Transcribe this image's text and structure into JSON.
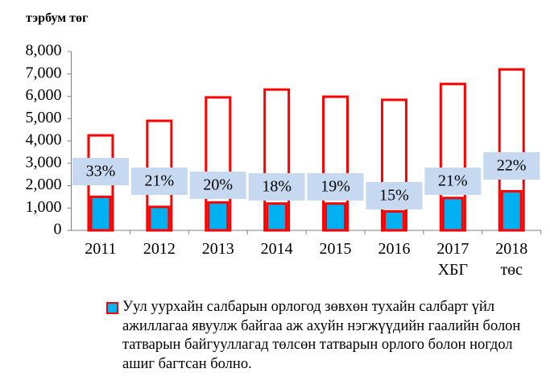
{
  "chart_data": {
    "type": "bar",
    "title": "тэрбум төг",
    "categories": [
      "2011",
      "2012",
      "2013",
      "2014",
      "2015",
      "2016",
      "2017\nХБГ",
      "2018\nтөс"
    ],
    "series": [
      {
        "color": "#ff0000",
        "values": [
          4250,
          4900,
          5950,
          6300,
          5980,
          5840,
          6550,
          7200
        ]
      },
      {
        "name": "Уул уурхайн салбарын орлогод зөвхөн тухайн салбарт үйл ажиллагаа явуулж байгаа аж ахуйн нэгжүүдийн гаалийн болон татварын байгууллагад төлсөн татварын орлого болон ногдол ашиг багтсан болно.",
        "color": "#00b0f0",
        "values": [
          1500,
          1050,
          1250,
          1200,
          1200,
          850,
          1450,
          1750
        ]
      }
    ],
    "percentages": {
      "values": [
        33,
        21,
        20,
        18,
        19,
        15,
        21,
        22
      ],
      "value_labels": [
        "33%",
        "21%",
        "20%",
        "18%",
        "19%",
        "15%",
        "21%",
        "22%"
      ]
    },
    "ylim": [
      0,
      8000
    ],
    "yticks": [
      0,
      {
        "value": 1000,
        "label": "1,000"
      },
      {
        "value": 2000,
        "label": "2,000"
      },
      {
        "value": 3000,
        "label": "3,000"
      },
      {
        "value": 4000,
        "label": "4,000"
      },
      {
        "value": 5000,
        "label": "5,000"
      },
      {
        "value": 6000,
        "label": "6,000"
      },
      {
        "value": 7000,
        "label": "7,000"
      },
      {
        "value": 8000,
        "label": "8,000"
      }
    ],
    "grid": false
  }
}
